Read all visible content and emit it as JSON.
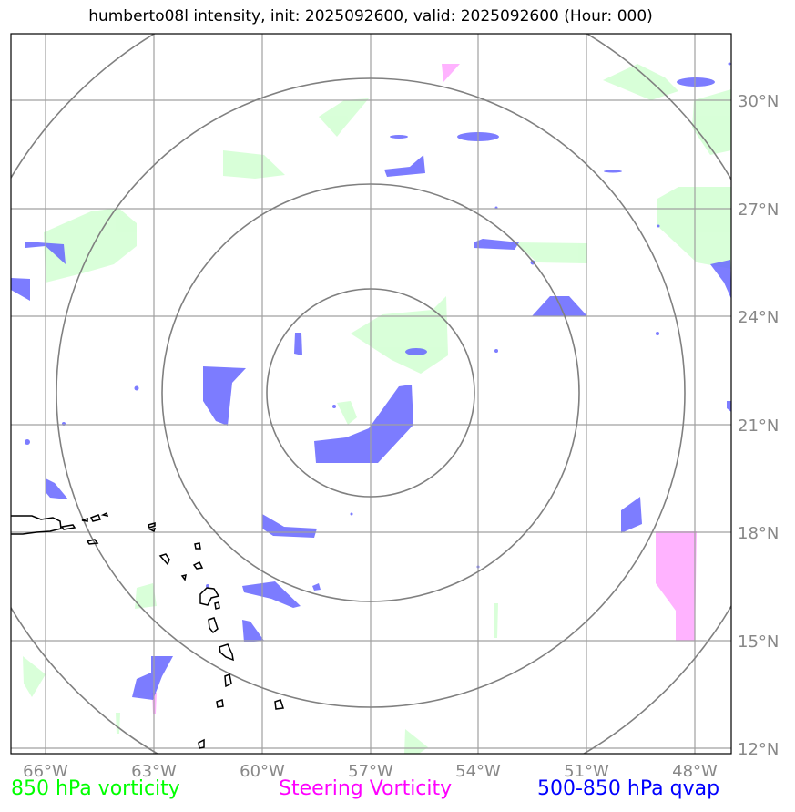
{
  "title": "humberto08l intensity, init: 2025092600, valid: 2025092600 (Hour: 000)",
  "map": {
    "lon_labels": [
      "66°W",
      "63°W",
      "60°W",
      "57°W",
      "54°W",
      "51°W",
      "48°W"
    ],
    "lat_labels": [
      "30°N",
      "27°N",
      "24°N",
      "21°N",
      "18°N",
      "15°N",
      "12°N"
    ],
    "extent": {
      "lon": [
        -67,
        -47
      ],
      "lat": [
        11.9,
        31.8
      ]
    },
    "storm_center": {
      "lon": -57,
      "lat": 22
    },
    "range_rings": 4,
    "colors": {
      "vorticity_850": "#ccffcc",
      "steering_vorticity": "#ff99ff",
      "qvap": "#6666ff",
      "rings": "#808080",
      "grid": "#a0a0a0",
      "coast": "#000000"
    }
  },
  "legend": {
    "vorticity": "850 hPa vorticity",
    "steering": "Steering Vorticity",
    "qvap": "500-850 hPa qvap"
  },
  "legend_colors": {
    "vorticity": "#00ff00",
    "steering": "#ff00ff",
    "qvap": "#0000ff"
  }
}
